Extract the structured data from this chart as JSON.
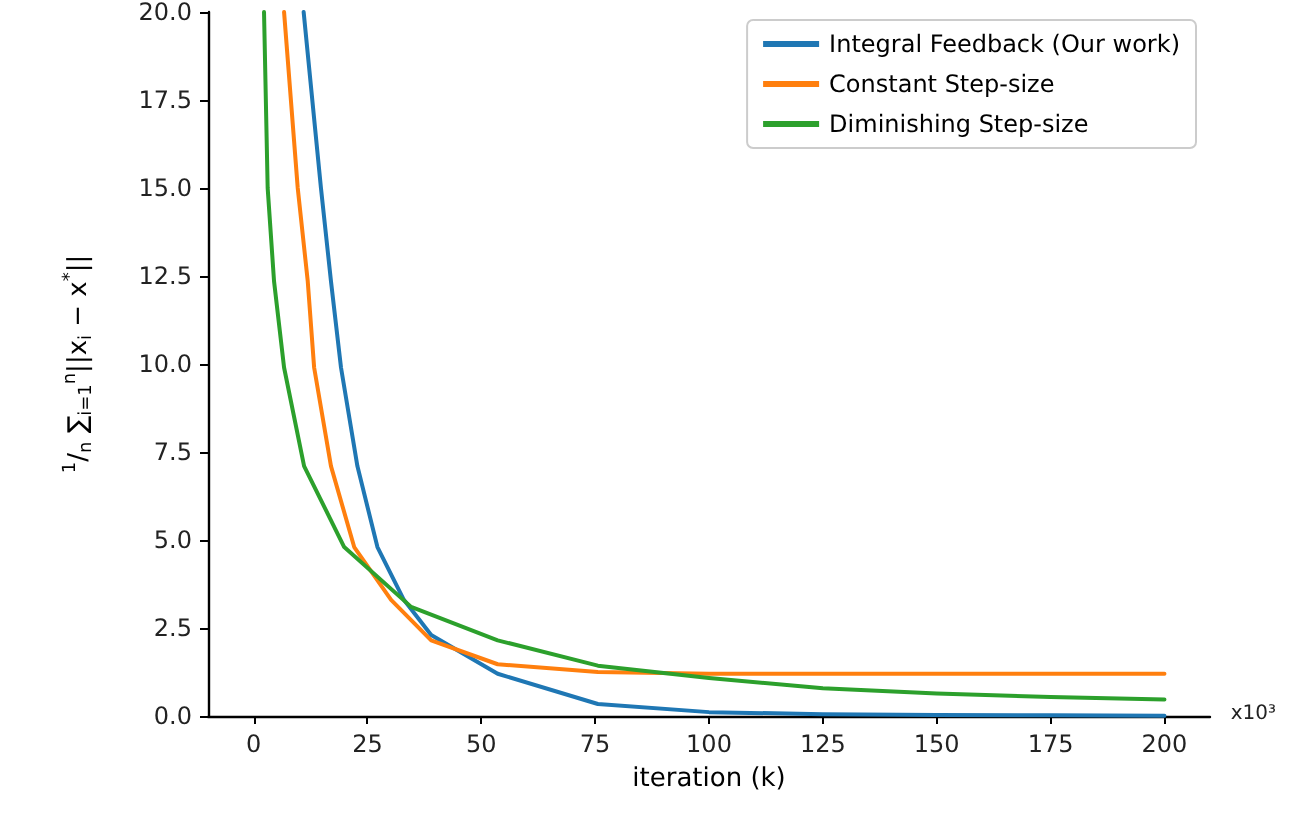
{
  "chart_data": {
    "type": "line",
    "xlabel": "iteration (k)",
    "ylabel": "$^{1}$/$_{n}$ ∑$_{i=1}$$^{n}$||x$_{i}$ − x$^{*}$||",
    "xlim": [
      -10,
      210
    ],
    "xticks": [
      0,
      25,
      50,
      75,
      100,
      125,
      150,
      175,
      200
    ],
    "ylim": [
      0,
      20
    ],
    "yticks": [
      {
        "value": 0,
        "label": "0.0"
      },
      {
        "value": 2.5,
        "label": "2.5"
      },
      {
        "value": 5,
        "label": "5.0"
      },
      {
        "value": 7.5,
        "label": "7.5"
      },
      {
        "value": 10,
        "label": "10.0"
      },
      {
        "value": 12.5,
        "label": "12.5"
      },
      {
        "value": 15,
        "label": "15.0"
      },
      {
        "value": 17.5,
        "label": "17.5"
      },
      {
        "value": 20,
        "label": "20.0"
      }
    ],
    "grid": false,
    "legend": "top right",
    "marker": "none",
    "line_style": "solid",
    "annotations": [
      "x10³"
    ],
    "series": [
      {
        "name": "Integral Feedback (Our work)",
        "color": "#1f77b4",
        "x": [
          11,
          14.8,
          17,
          19.2,
          22.8,
          27.2,
          33,
          39,
          53.6,
          75.6,
          100,
          125,
          150,
          175,
          200
        ],
        "values": [
          20,
          15,
          12.35,
          9.9,
          7.1,
          4.8,
          3.3,
          2.3,
          1.2,
          0.34,
          0.11,
          0.05,
          0.03,
          0.02,
          0.01
        ]
      },
      {
        "name": "Constant Step-size",
        "color": "#ff7f0e",
        "x": [
          6.7,
          9.7,
          11.9,
          13.3,
          17,
          22.1,
          30.2,
          39,
          53.6,
          75.6,
          100,
          125,
          150,
          175,
          200
        ],
        "values": [
          20,
          15,
          12.35,
          9.9,
          7.1,
          4.8,
          3.3,
          2.15,
          1.47,
          1.25,
          1.2,
          1.2,
          1.2,
          1.2,
          1.2
        ]
      },
      {
        "name": "Diminishing Step-size",
        "color": "#2ca02c",
        "x": [
          2.3,
          3.1,
          4.5,
          6.7,
          11.1,
          19.9,
          34.6,
          53.6,
          75.6,
          100,
          125,
          150,
          175,
          200
        ],
        "values": [
          20,
          15,
          12.35,
          9.9,
          7.1,
          4.8,
          3.1,
          2.15,
          1.43,
          1.08,
          0.79,
          0.64,
          0.54,
          0.47
        ]
      }
    ]
  }
}
